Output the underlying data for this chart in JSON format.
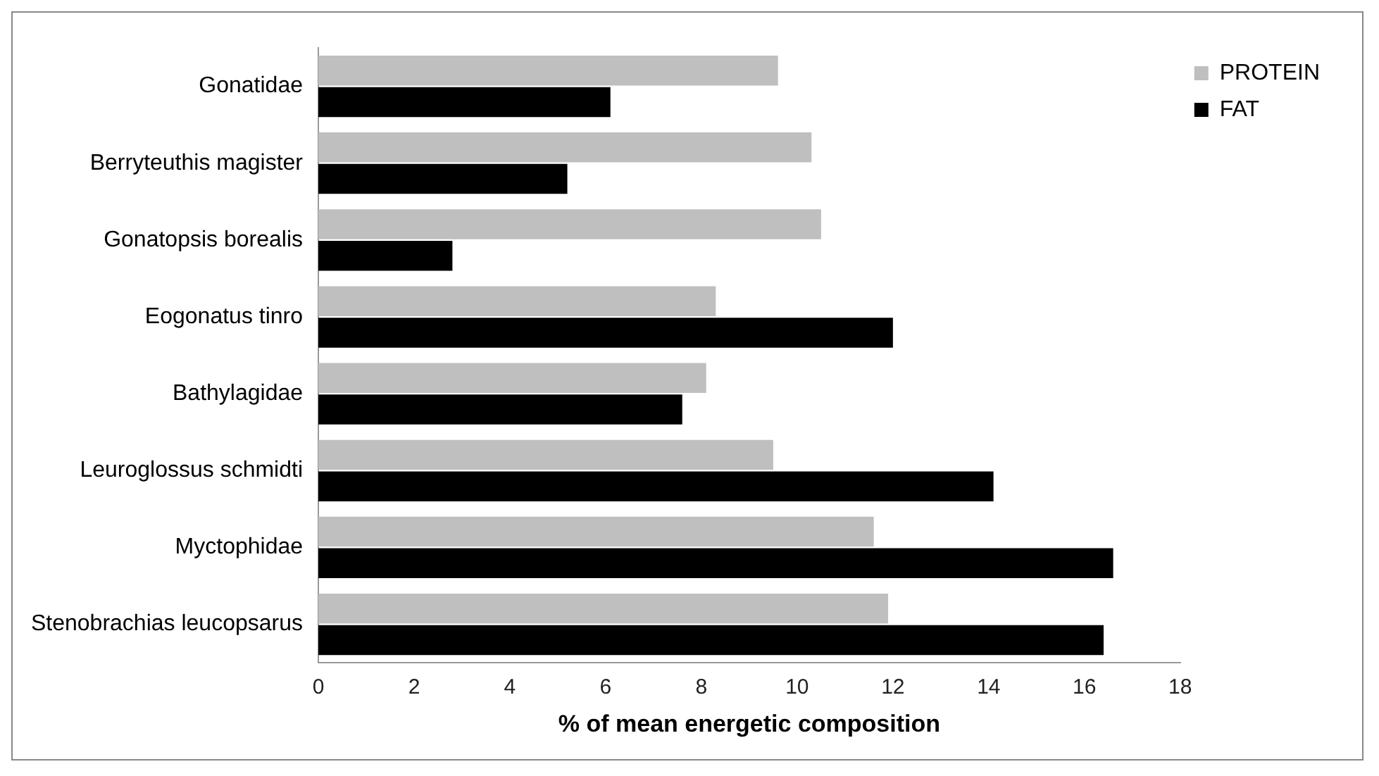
{
  "chart_data": {
    "type": "bar",
    "orientation": "horizontal",
    "xlabel": "% of mean energetic composition",
    "categories": [
      "Gonatidae",
      "Berryteuthis magister",
      "Gonatopsis borealis",
      "Eogonatus tinro",
      "Bathylagidae",
      "Leuroglossus schmidti",
      "Myctophidae",
      "Stenobrachias leucopsarus"
    ],
    "series": [
      {
        "name": "PROTEIN",
        "color": "#bfbfbf",
        "values": [
          9.6,
          10.3,
          10.5,
          8.3,
          8.1,
          9.5,
          11.6,
          11.9
        ]
      },
      {
        "name": "FAT",
        "color": "#000000",
        "values": [
          6.1,
          5.2,
          2.8,
          12.0,
          7.6,
          14.1,
          16.6,
          16.4
        ]
      }
    ],
    "xlim": [
      0,
      18
    ],
    "xticks": [
      0,
      2,
      4,
      6,
      8,
      10,
      12,
      14,
      16,
      18
    ],
    "grid": false,
    "legend": "top right"
  }
}
